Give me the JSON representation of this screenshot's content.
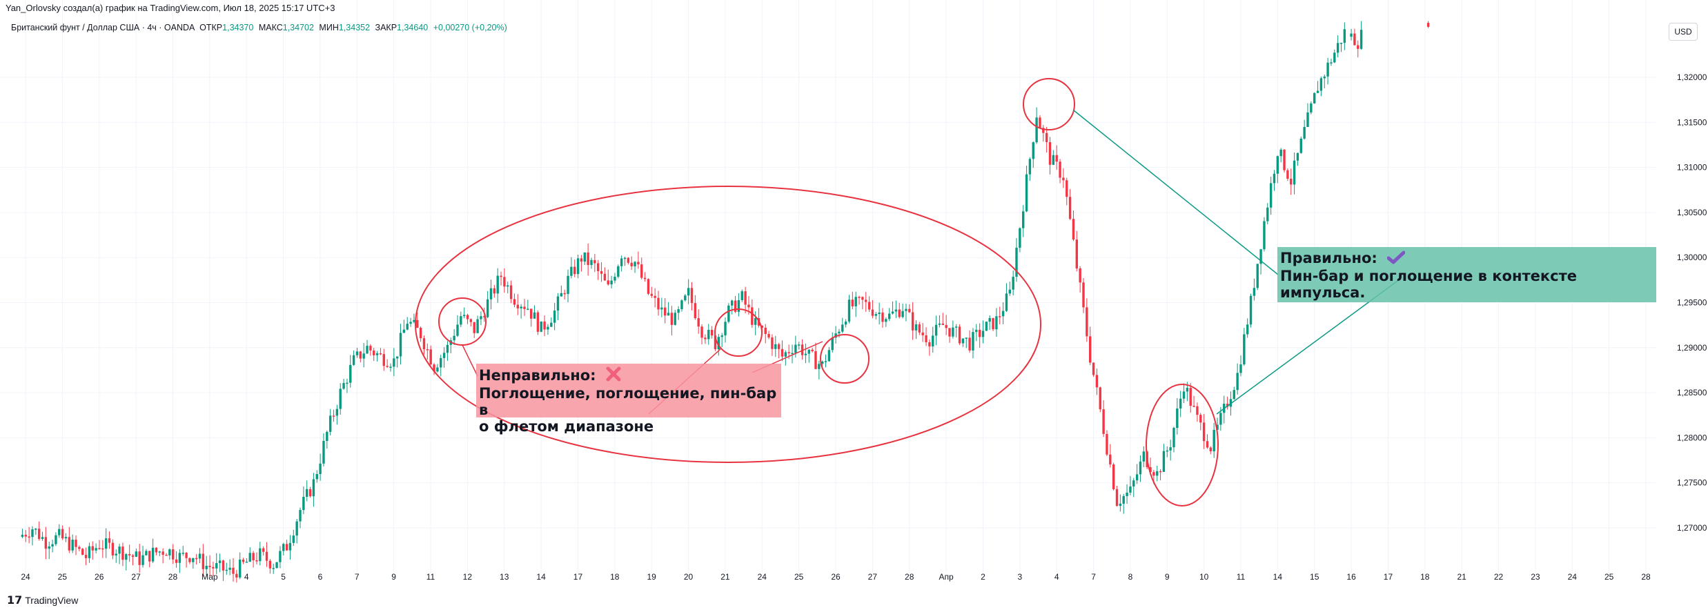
{
  "header": {
    "credit": "Yan_Orlovsky создал(а) график на TradingView.com, Июл 18, 2025 15:17 UTC+3",
    "symbol": "Британский фунт / Доллар США · 4ч · OANDA",
    "open_label": "ОТКР",
    "open_value": "1,34370",
    "high_label": "МАКС",
    "high_value": "1,34702",
    "low_label": "МИН",
    "low_value": "1,34352",
    "close_label": "ЗАКР",
    "close_value": "1,34640",
    "change": "+0,00270 (+0,20%)"
  },
  "currency_button": "USD",
  "watermark": "TradingView",
  "colors": {
    "up": "#089981",
    "down": "#f23645",
    "annotation": "#e8323f",
    "line": "#0c9a85",
    "wrong_box": "#f795a0",
    "right_box": "#66c1aa",
    "check": "#7e57c2",
    "cross": "#f0607a"
  },
  "annotations": {
    "wrong": {
      "title": "Неправильно:",
      "mark": "cross-icon",
      "line1": "Поглощение, поглощение, пин-бар в",
      "line2": "о флетом диапазоне"
    },
    "right": {
      "title": "Правильно:",
      "mark": "check-icon",
      "line1": "Пин-бар и поглощение в контексте импульса."
    }
  },
  "chart_data": {
    "type": "candlestick",
    "symbol": "GBPUSD",
    "timeframe": "4ч",
    "y_ticks": [
      "1,32000",
      "1,31500",
      "1,31000",
      "1,30500",
      "1,30000",
      "1,29500",
      "1,29000",
      "1,28500",
      "1,28000",
      "1,27500",
      "1,27000"
    ],
    "ylim": [
      1.2645,
      1.327
    ],
    "x_ticks": [
      "24",
      "25",
      "26",
      "27",
      "28",
      "Мар",
      "4",
      "5",
      "6",
      "7",
      "9",
      "11",
      "12",
      "13",
      "14",
      "17",
      "18",
      "19",
      "20",
      "21",
      "24",
      "25",
      "26",
      "27",
      "28",
      "Апр",
      "2",
      "3",
      "4",
      "7",
      "8",
      "9",
      "10",
      "11",
      "14",
      "15",
      "16",
      "17",
      "18",
      "21",
      "22",
      "23",
      "24",
      "25",
      "28"
    ],
    "anchors": [
      1.269,
      1.27,
      1.2685,
      1.269,
      1.268,
      1.2668,
      1.2682,
      1.2678,
      1.2672,
      1.2665,
      1.2672,
      1.2676,
      1.2668,
      1.267,
      1.2658,
      1.2655,
      1.265,
      1.2662,
      1.267,
      1.266,
      1.268,
      1.272,
      1.275,
      1.2805,
      1.285,
      1.2885,
      1.29,
      1.289,
      1.2885,
      1.293,
      1.2915,
      1.288,
      1.29,
      1.2935,
      1.292,
      1.295,
      1.298,
      1.2955,
      1.2945,
      1.292,
      1.294,
      1.2975,
      1.3,
      1.299,
      1.2965,
      1.3005,
      1.2995,
      1.296,
      1.294,
      1.293,
      1.296,
      1.292,
      1.2905,
      1.294,
      1.2955,
      1.2925,
      1.291,
      1.289,
      1.2905,
      1.289,
      1.288,
      1.2915,
      1.2945,
      1.295,
      1.294,
      1.2935,
      1.2945,
      1.292,
      1.291,
      1.2925,
      1.2915,
      1.2905,
      1.292,
      1.293,
      1.296,
      1.306,
      1.316,
      1.311,
      1.309,
      1.299,
      1.289,
      1.281,
      1.273,
      1.274,
      1.278,
      1.276,
      1.2795,
      1.286,
      1.282,
      1.279,
      1.283,
      1.287,
      1.295,
      1.304,
      1.312,
      1.3085,
      1.314,
      1.319,
      1.322,
      1.325,
      1.324,
      1.3265,
      1.328,
      1.329,
      1.3285,
      1.326,
      1.327,
      1.3275,
      1.328,
      1.3285,
      1.327,
      1.3275,
      1.3278,
      1.3282,
      1.328,
      1.3282,
      1.3285,
      1.3288
    ]
  }
}
